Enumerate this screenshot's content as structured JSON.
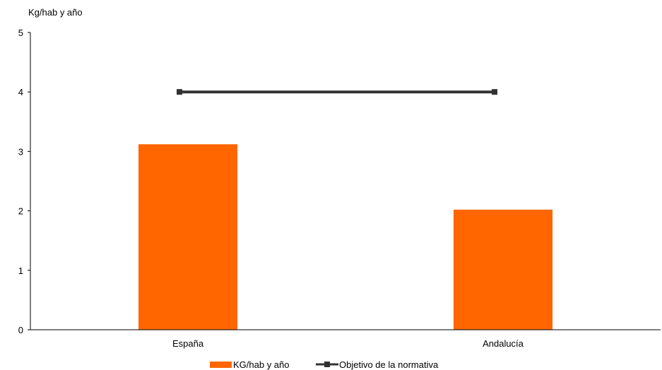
{
  "chart_data": {
    "type": "bar",
    "ylabel": "Kg/hab y año",
    "xlabel": "",
    "title": "",
    "categories": [
      "España",
      "Andalucía"
    ],
    "ylim": [
      0,
      5
    ],
    "yticks": [
      0,
      1,
      2,
      3,
      4,
      5
    ],
    "series": [
      {
        "name": "KG/hab y año",
        "kind": "bar",
        "color": "#ff6600",
        "values": [
          3.12,
          2.02
        ]
      },
      {
        "name": "Objetivo de la normativa",
        "kind": "line",
        "color": "#333333",
        "marker": "square",
        "values": [
          4,
          4
        ]
      }
    ],
    "grid": false,
    "legend_position": "bottom"
  }
}
